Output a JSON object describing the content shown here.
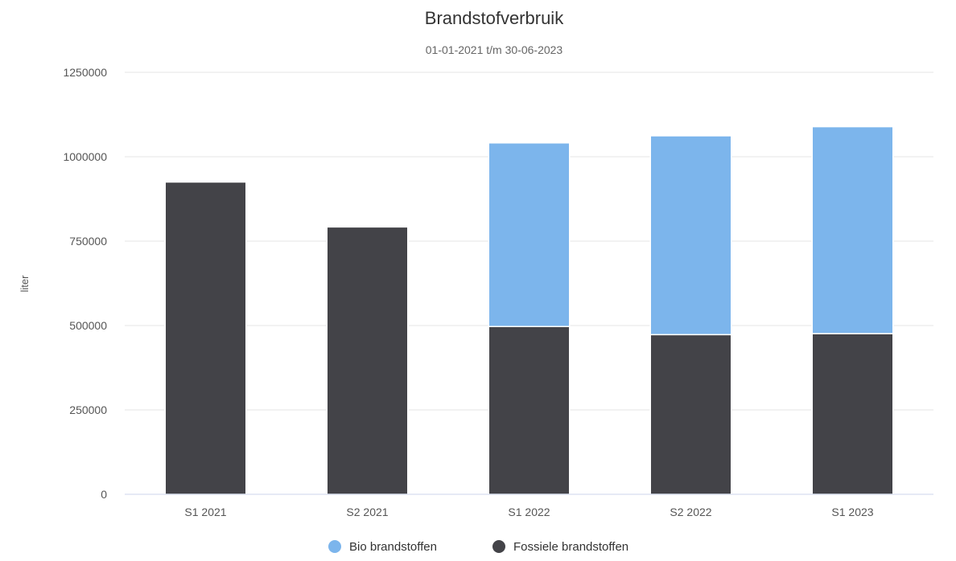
{
  "chart_data": {
    "type": "bar",
    "stacked": true,
    "title": "Brandstofverbruik",
    "subtitle": "01-01-2021 t/m 30-06-2023",
    "xlabel": "",
    "ylabel": "liter",
    "ylim": [
      0,
      1250000
    ],
    "yticks": [
      0,
      250000,
      500000,
      750000,
      1000000,
      1250000
    ],
    "ytick_labels": [
      "0",
      "250000",
      "500000",
      "750000",
      "1000000",
      "1250000"
    ],
    "categories": [
      "S1 2021",
      "S2 2021",
      "S1 2022",
      "S2 2022",
      "S1 2023"
    ],
    "series": [
      {
        "name": "Fossiele brandstoffen",
        "color": "#434348",
        "values": [
          925000,
          792000,
          497000,
          473000,
          476000
        ]
      },
      {
        "name": "Bio brandstoffen",
        "color": "#7cb5ec",
        "values": [
          0,
          0,
          544000,
          589000,
          613000
        ]
      }
    ],
    "legend": {
      "position": "bottom-center",
      "order": [
        "Bio brandstoffen",
        "Fossiele brandstoffen"
      ]
    },
    "grid": true
  }
}
